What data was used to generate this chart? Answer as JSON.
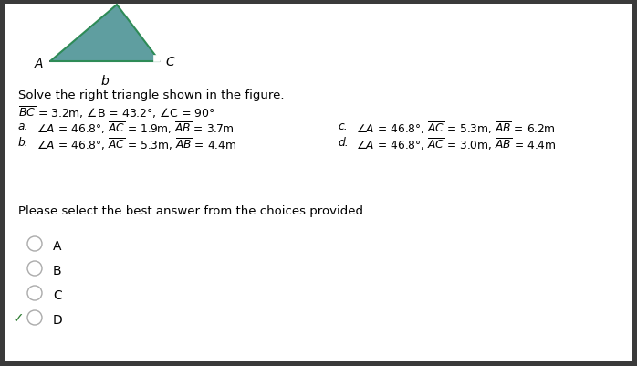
{
  "bg_color": "#3a3a3a",
  "content_bg": "#ffffff",
  "triangle_fill": "#5f9ea0",
  "triangle_edge": "#2e8b57",
  "right_angle_color": "#ffffff",
  "label_A": "A",
  "label_b": "b",
  "label_C": "C",
  "title_text": "Solve the right triangle shown in the figure.",
  "given_text": "BC = 3.2m, ∠B = 43.2°, ∠C = 90°",
  "choice_a_left": "a.",
  "choice_a_right": "∠A = 46.8°, AC = 1.9m, AB = 3.7m",
  "choice_b_left": "b.",
  "choice_b_right": "∠A = 46.8°, AC = 5.3m, AB = 4.4m",
  "choice_c_left": "c.",
  "choice_c_right": "∠A = 46.8°, AC = 5.3m, AB = 6.2m",
  "choice_d_left": "d.",
  "choice_d_right": "∠A = 46.8°, AC = 3.0m, AB = 4.4m",
  "please_select": "Please select the best answer from the choices provided",
  "radio_labels": [
    "A",
    "B",
    "C",
    "D"
  ],
  "correct_answer_idx": 3,
  "check_color": "#2e7d32",
  "text_color": "#000000",
  "radio_color": "#aaaaaa"
}
